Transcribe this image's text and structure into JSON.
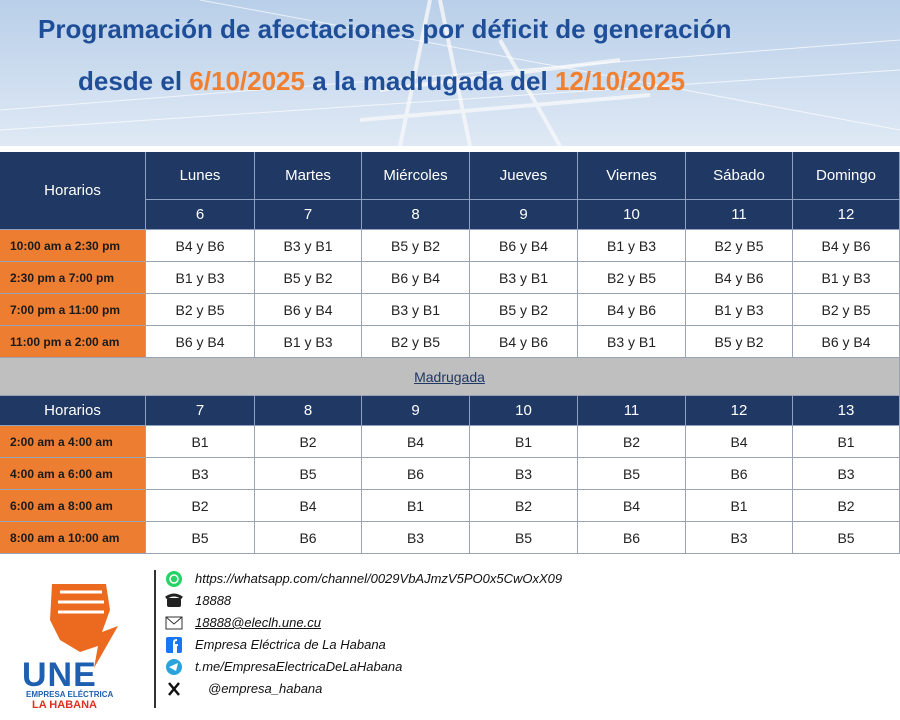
{
  "header": {
    "title": "Programación de afectaciones por déficit de generación",
    "subtitle_start": "desde el",
    "start_date": "6/10/2025",
    "subtitle_middle": "a la madrugada del",
    "end_date": "12/10/2025"
  },
  "schedule": {
    "header_label": "Horarios",
    "days": [
      "Lunes",
      "Martes",
      "Miércoles",
      "Jueves",
      "Viernes",
      "Sábado",
      "Domingo"
    ],
    "dates": [
      6,
      7,
      8,
      9,
      10,
      11,
      12
    ],
    "rows": [
      {
        "time": "10:00 am a 2:30 pm",
        "blocks": [
          "B4 y B6",
          "B3 y B1",
          "B5 y B2",
          "B6 y B4",
          "B1 y B3",
          "B2 y B5",
          "B4 y B6"
        ]
      },
      {
        "time": "2:30 pm a 7:00 pm",
        "blocks": [
          "B1 y B3",
          "B5 y B2",
          "B6 y B4",
          "B3 y B1",
          "B2 y B5",
          "B4 y B6",
          "B1 y B3"
        ]
      },
      {
        "time": "7:00 pm a 11:00 pm",
        "blocks": [
          "B2 y B5",
          "B6 y B4",
          "B3 y B1",
          "B5 y B2",
          "B4 y B6",
          "B1 y B3",
          "B2 y B5"
        ]
      },
      {
        "time": "11:00 pm a 2:00 am",
        "blocks": [
          "B6 y B4",
          "B1 y B3",
          "B2 y B5",
          "B4 y B6",
          "B3 y B1",
          "B5 y B2",
          "B6 y B4"
        ]
      }
    ]
  },
  "section_label": "Madrugada",
  "early_morning": {
    "header_label": "Horarios",
    "dates": [
      7,
      8,
      9,
      10,
      11,
      12,
      13
    ],
    "rows": [
      {
        "time": "2:00 am a 4:00 am",
        "blocks": [
          "B1",
          "B2",
          "B4",
          "B1",
          "B2",
          "B4",
          "B1"
        ]
      },
      {
        "time": "4:00 am a 6:00 am",
        "blocks": [
          "B3",
          "B5",
          "B6",
          "B3",
          "B5",
          "B6",
          "B3"
        ]
      },
      {
        "time": "6:00 am a 8:00 am",
        "blocks": [
          "B2",
          "B4",
          "B1",
          "B2",
          "B4",
          "B1",
          "B2"
        ]
      },
      {
        "time": "8:00 am a 10:00 am",
        "blocks": [
          "B5",
          "B6",
          "B3",
          "B5",
          "B6",
          "B3",
          "B5"
        ]
      }
    ]
  },
  "contacts": [
    "https://whatsapp.com/channel/0029VbAJmzV5PO0x5CwOxX09",
    "18888",
    "18888@eleclh.une.cu",
    "Empresa Eléctrica de La Habana",
    "t.me/EmpresaElectricaDeLaHabana",
    "@empresa_habana"
  ],
  "logo": {
    "name": "UNE",
    "line1": "EMPRESA ELÉCTRICA",
    "line2": "LA HABANA"
  }
}
